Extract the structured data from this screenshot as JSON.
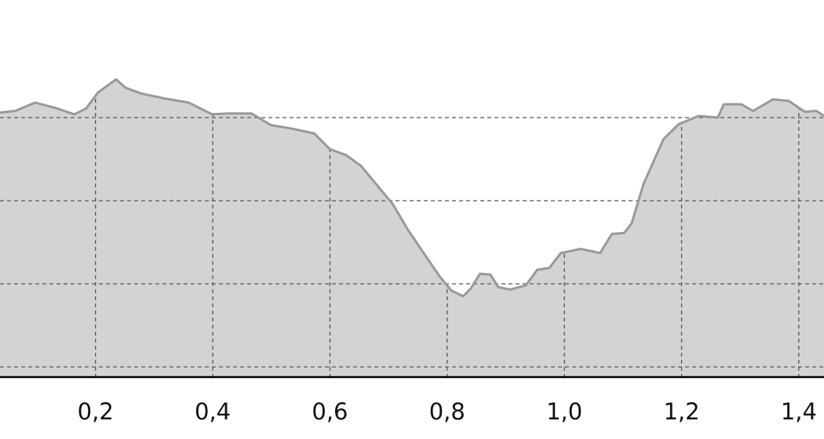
{
  "chart_data": {
    "type": "area",
    "title": "",
    "xlabel": "",
    "ylabel": "",
    "xlim": [
      0.037,
      1.443
    ],
    "ylim": [
      -0.12,
      4.4
    ],
    "x_ticks": [
      0.2,
      0.4,
      0.6,
      0.8,
      1.0,
      1.2,
      1.4
    ],
    "x_tick_labels": [
      "0,2",
      "0,4",
      "0,6",
      "0,8",
      "1,0",
      "1,2",
      "1,4"
    ],
    "y_gridlines": [
      0,
      1,
      2,
      3
    ],
    "y_tick_labels_shown": false,
    "grid": true,
    "grid_style": "dashed",
    "colors": {
      "fill": "#d3d3d3",
      "line": "#999999",
      "grid": "#555555",
      "axis": "#000000"
    },
    "x": [
      0.037,
      0.063,
      0.097,
      0.13,
      0.164,
      0.184,
      0.204,
      0.235,
      0.251,
      0.278,
      0.318,
      0.359,
      0.399,
      0.426,
      0.466,
      0.499,
      0.533,
      0.573,
      0.6,
      0.627,
      0.653,
      0.68,
      0.707,
      0.733,
      0.76,
      0.787,
      0.807,
      0.827,
      0.84,
      0.856,
      0.874,
      0.887,
      0.907,
      0.934,
      0.954,
      0.974,
      0.994,
      1.028,
      1.061,
      1.081,
      1.102,
      1.115,
      1.135,
      1.169,
      1.195,
      1.229,
      1.262,
      1.272,
      1.302,
      1.322,
      1.356,
      1.383,
      1.41,
      1.43,
      1.443
    ],
    "y": [
      3.06,
      3.08,
      3.18,
      3.12,
      3.04,
      3.11,
      3.3,
      3.46,
      3.36,
      3.29,
      3.23,
      3.18,
      3.04,
      3.05,
      3.05,
      2.91,
      2.87,
      2.81,
      2.62,
      2.55,
      2.42,
      2.19,
      1.96,
      1.65,
      1.37,
      1.09,
      0.92,
      0.85,
      0.94,
      1.12,
      1.11,
      0.96,
      0.93,
      0.98,
      1.17,
      1.19,
      1.37,
      1.42,
      1.37,
      1.6,
      1.61,
      1.73,
      2.2,
      2.74,
      2.92,
      3.02,
      3.0,
      3.16,
      3.16,
      3.08,
      3.22,
      3.2,
      3.07,
      3.08,
      3.02
    ]
  }
}
